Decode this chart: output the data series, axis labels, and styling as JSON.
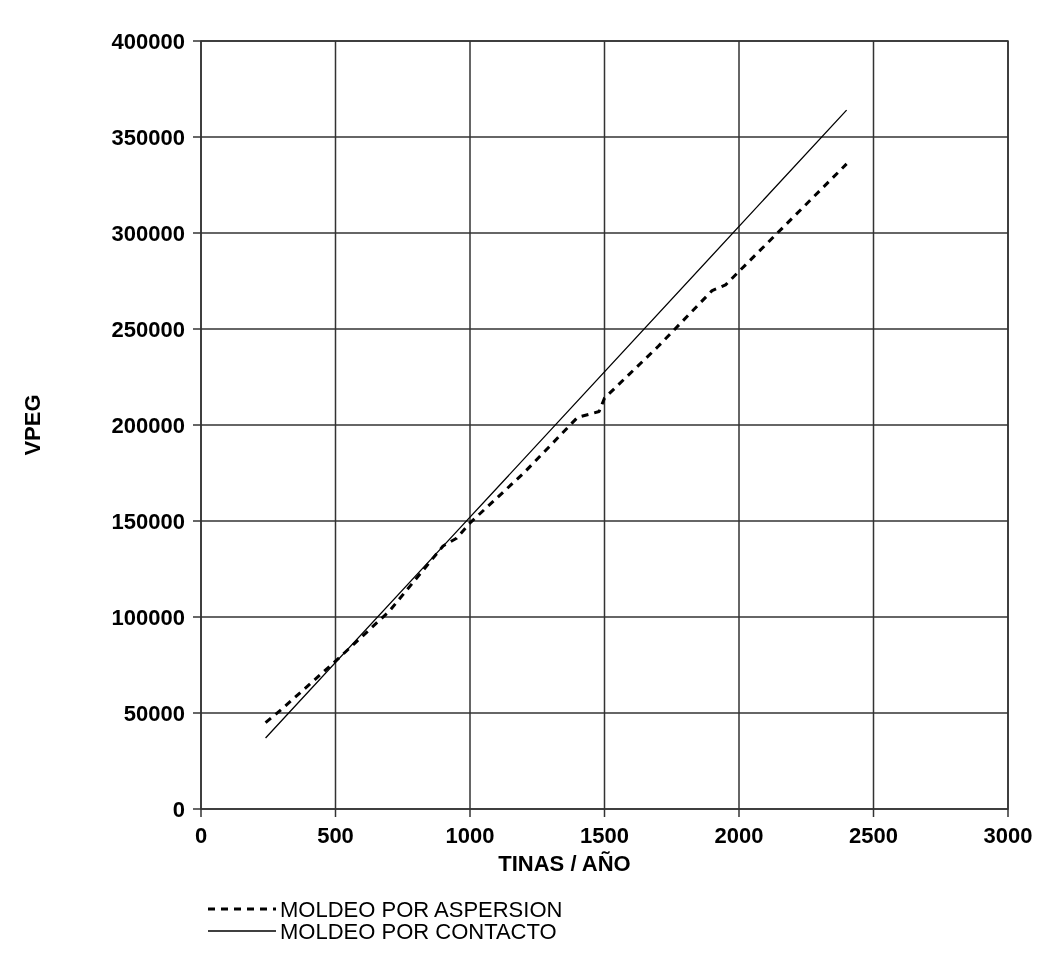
{
  "chart_data": {
    "type": "line",
    "xlabel": "TINAS / AÑO",
    "ylabel": "VPEG",
    "xlim": [
      0,
      3000
    ],
    "xticks": [
      0,
      500,
      1000,
      1500,
      2000,
      2500,
      3000
    ],
    "ylim": [
      0,
      400000
    ],
    "yticks": [
      0,
      50000,
      100000,
      150000,
      200000,
      250000,
      300000,
      350000,
      400000
    ],
    "grid": true,
    "legend": "bottom",
    "marker": "none",
    "series": [
      {
        "name": "MOLDEO POR ASPERSION",
        "color": "#000000",
        "line_style": "dashed",
        "x": [
          240,
          300,
          500,
          700,
          900,
          950,
          1000,
          1200,
          1400,
          1480,
          1500,
          1700,
          1900,
          1950,
          2000,
          2200,
          2400
        ],
        "values": [
          45000,
          52000,
          77000,
          103000,
          137000,
          141000,
          149000,
          175000,
          204000,
          207000,
          214000,
          241000,
          270000,
          273000,
          280000,
          308000,
          336000
        ]
      },
      {
        "name": "MOLDEO POR CONTACTO",
        "color": "#000000",
        "line_style": "solid",
        "x": [
          240,
          1000,
          2400
        ],
        "values": [
          37000,
          152000,
          364000
        ]
      }
    ]
  }
}
